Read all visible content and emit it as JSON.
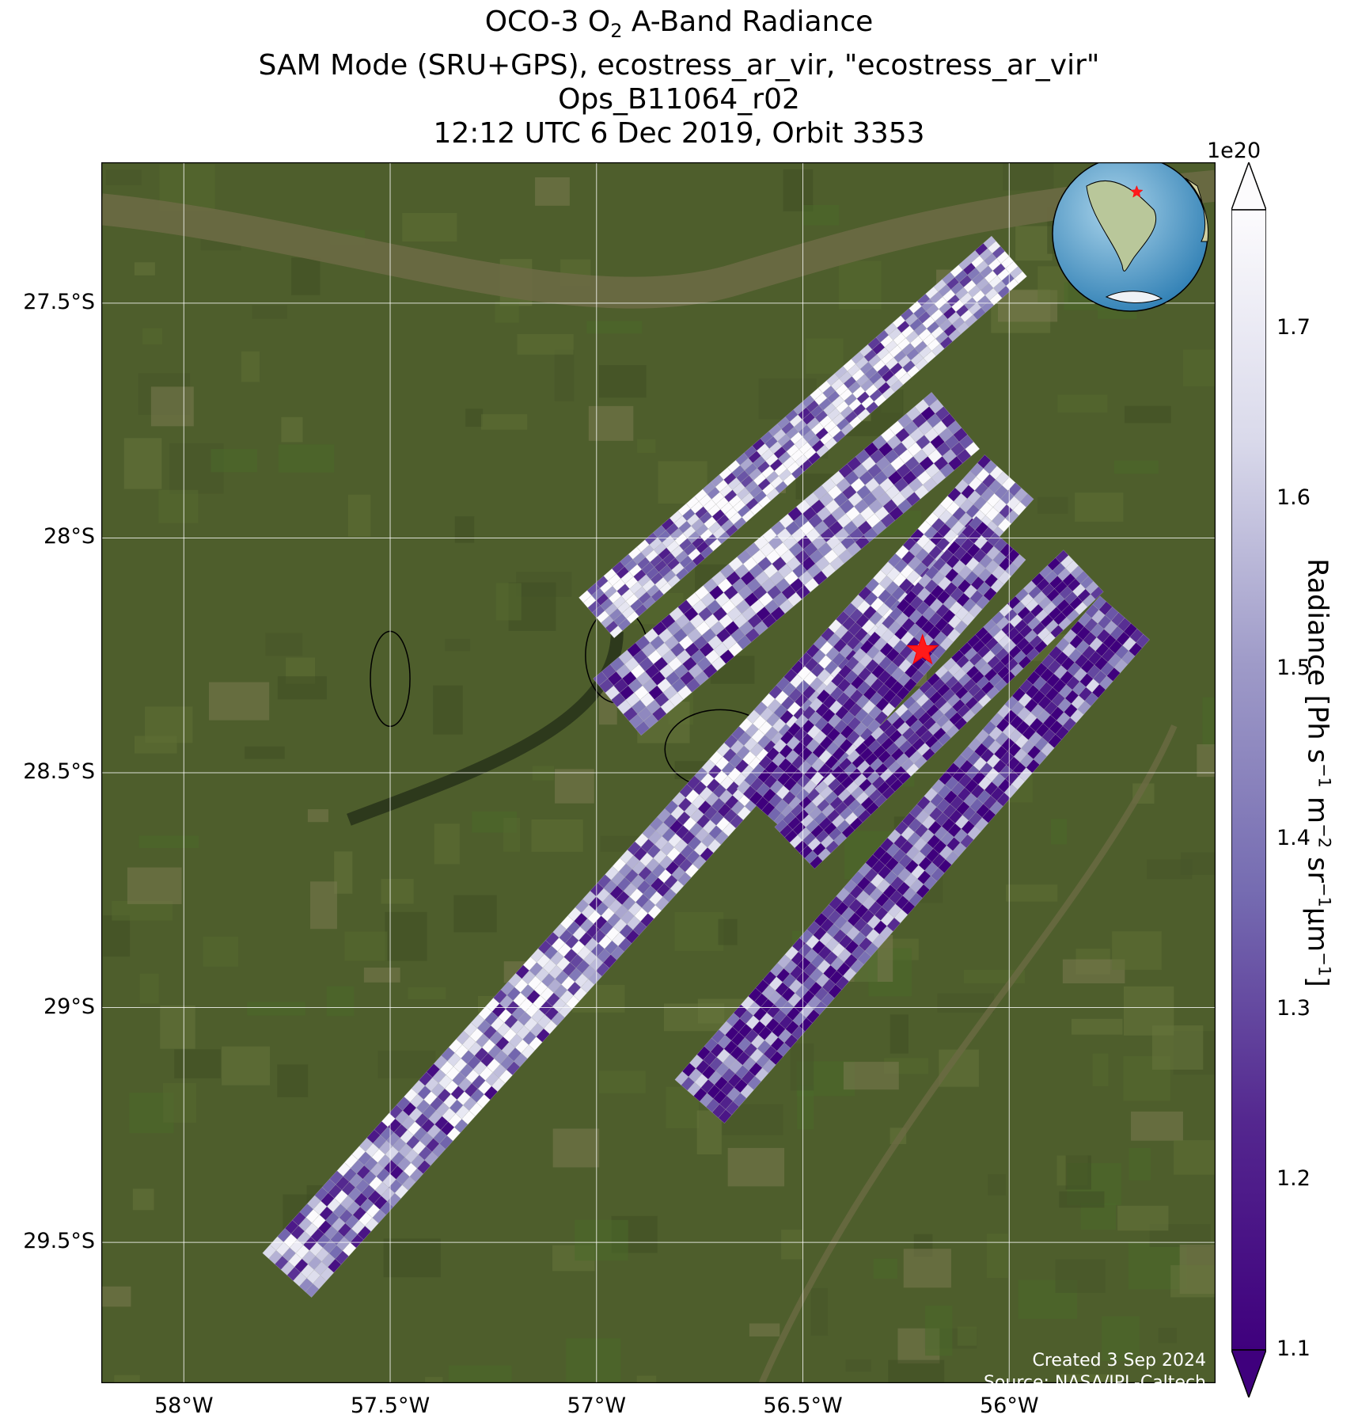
{
  "title": {
    "line1_prefix": "OCO-3 O",
    "line1_sub": "2",
    "line1_suffix": " A-Band Radiance",
    "line2": "SAM Mode (SRU+GPS), ecostress_ar_vir, \"ecostress_ar_vir\"",
    "line3": "Ops_B11064_r02",
    "line4": "12:12 UTC 6 Dec 2019, Orbit 3353"
  },
  "map": {
    "lon_range": [
      -58.2,
      -55.5
    ],
    "lat_range": [
      -29.8,
      -27.2
    ],
    "lat_ticks": [
      {
        "value": -27.5,
        "label": "27.5°S"
      },
      {
        "value": -28.0,
        "label": "28°S"
      },
      {
        "value": -28.5,
        "label": "28.5°S"
      },
      {
        "value": -29.0,
        "label": "29°S"
      },
      {
        "value": -29.5,
        "label": "29.5°S"
      }
    ],
    "lon_ticks": [
      {
        "value": -58.0,
        "label": "58°W"
      },
      {
        "value": -57.5,
        "label": "57.5°W"
      },
      {
        "value": -57.0,
        "label": "57°W"
      },
      {
        "value": -56.5,
        "label": "56.5°W"
      },
      {
        "value": -56.0,
        "label": "56°W"
      }
    ],
    "target": {
      "lon": -56.21,
      "lat": -28.24,
      "color": "#ff1a1a"
    },
    "inset_globe": {
      "marker_lon": -56.2,
      "marker_lat": -28.2
    }
  },
  "chart_data": {
    "type": "heatmap",
    "title": "OCO-3 O2 A-Band Radiance",
    "colorbar_label": "Radiance [Ph s−1 m−2 sr−1μm−1]",
    "colormap": "Purples_r",
    "vmin": 1.1,
    "vmax": 1.77,
    "scale_multiplier": "1e20",
    "colorbar_ticks": [
      1.1,
      1.2,
      1.3,
      1.4,
      1.5,
      1.6,
      1.7
    ],
    "swaths": [
      {
        "name": "swath-1",
        "start": [
          -56.0,
          -27.4
        ],
        "end": [
          -57.0,
          -28.17
        ],
        "width_deg": 0.13,
        "mean_radiance": 1.55
      },
      {
        "name": "swath-2",
        "start": [
          -56.13,
          -27.75
        ],
        "end": [
          -56.95,
          -28.36
        ],
        "width_deg": 0.18,
        "mean_radiance": 1.45
      },
      {
        "name": "swath-3",
        "start": [
          -56.0,
          -27.87
        ],
        "end": [
          -57.75,
          -29.57
        ],
        "width_deg": 0.16,
        "mean_radiance": 1.5
      },
      {
        "name": "swath-4",
        "start": [
          -56.02,
          -28.0
        ],
        "end": [
          -56.6,
          -28.58
        ],
        "width_deg": 0.16,
        "mean_radiance": 1.3
      },
      {
        "name": "swath-5",
        "start": [
          -55.82,
          -28.07
        ],
        "end": [
          -56.52,
          -28.66
        ],
        "width_deg": 0.14,
        "mean_radiance": 1.3
      },
      {
        "name": "swath-6",
        "start": [
          -55.72,
          -28.17
        ],
        "end": [
          -56.75,
          -29.2
        ],
        "width_deg": 0.16,
        "mean_radiance": 1.28
      }
    ]
  },
  "colors": {
    "land": "#4e5e2c",
    "river": "#6b6a44",
    "gridline": "#ffffff",
    "purple_dark": "#3f007d",
    "purple_light": "#fcfbfd"
  },
  "credit": {
    "line1": "Created 3 Sep 2024",
    "line2": "Source: NASA/JPL-Caltech"
  }
}
